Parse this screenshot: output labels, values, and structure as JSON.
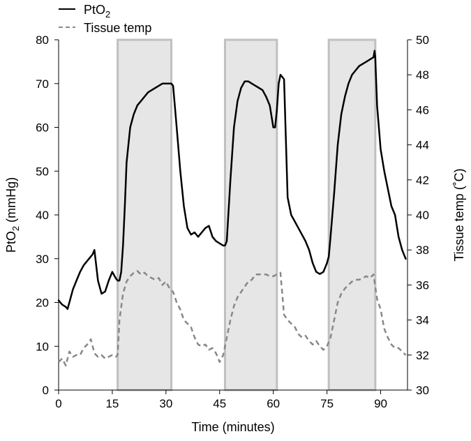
{
  "chart_data": {
    "type": "line",
    "title": "",
    "xlabel": "Time (minutes)",
    "ylabel_left": "PtO2 (mmHg)",
    "ylabel_right": "Tissue temp (˚C)",
    "xlim": [
      0,
      97.5
    ],
    "ylim_left": [
      0,
      80
    ],
    "ylim_right": [
      30,
      50
    ],
    "x_ticks": [
      "0",
      "15",
      "30",
      "45",
      "60",
      "75",
      "90"
    ],
    "y_left_ticks": [
      "0",
      "10",
      "20",
      "30",
      "40",
      "50",
      "60",
      "70",
      "80"
    ],
    "y_right_ticks": [
      "30",
      "32",
      "34",
      "36",
      "38",
      "40",
      "42",
      "44",
      "46",
      "48",
      "50"
    ],
    "grid": false,
    "legend_position": "top-left",
    "shaded_intervals": [
      [
        16.5,
        31.5
      ],
      [
        46.5,
        61
      ],
      [
        75.5,
        88.5
      ]
    ],
    "series": [
      {
        "name": "PtO2",
        "axis": "left",
        "style": "solid",
        "color": "#000000",
        "x": [
          0,
          1,
          2,
          2.5,
          3,
          4,
          5,
          6,
          7,
          8,
          9,
          9.5,
          10,
          11,
          12,
          13,
          14,
          15,
          16,
          16.5,
          17,
          17.5,
          18,
          18.5,
          19,
          20,
          21,
          22,
          23,
          24,
          25,
          26,
          27,
          28,
          29,
          30,
          31,
          31.5,
          32,
          33,
          34,
          35,
          36,
          37,
          38,
          39,
          40,
          41,
          42,
          43,
          44,
          45,
          46,
          46.5,
          47,
          48,
          49,
          50,
          51,
          52,
          53,
          54,
          55,
          56,
          57,
          58,
          59,
          60,
          60.5,
          61,
          61.5,
          62,
          63,
          64,
          65,
          66,
          67,
          68,
          69,
          70,
          71,
          72,
          73,
          74,
          75,
          75.5,
          76,
          77,
          78,
          79,
          80,
          81,
          82,
          83,
          84,
          85,
          86,
          87,
          88,
          88.3,
          88.5,
          89,
          90,
          91,
          92,
          93,
          94,
          95,
          96,
          97
        ],
        "y": [
          20.5,
          19.5,
          19,
          18.5,
          20,
          23,
          25,
          27,
          28.5,
          29.5,
          30.5,
          31,
          32,
          25,
          22,
          22.5,
          25,
          27,
          25.5,
          25,
          25,
          27,
          33,
          42,
          52,
          60,
          63,
          65,
          66,
          67,
          68,
          68.5,
          69,
          69.5,
          70,
          70,
          70,
          70,
          69.5,
          60,
          50,
          42,
          37,
          35.5,
          36,
          35,
          36,
          37,
          37.5,
          35,
          34,
          33.5,
          33,
          33,
          34,
          48,
          60,
          66,
          69,
          70.5,
          70.5,
          70,
          69.5,
          69,
          68.5,
          67,
          65,
          60,
          60,
          64,
          70,
          72,
          71,
          44,
          40,
          38.5,
          37,
          35.5,
          34,
          32,
          29,
          27,
          26.5,
          27,
          29,
          30.5,
          35,
          45,
          56,
          63,
          67,
          70,
          72,
          73,
          74,
          74.5,
          75,
          75.5,
          76,
          77.5,
          76,
          65,
          55,
          50,
          46,
          42,
          40,
          35,
          32,
          30
        ],
        "values": [
          20.5,
          19.5,
          19,
          18.5,
          20,
          23,
          25,
          27,
          28.5,
          29.5,
          30.5,
          31,
          32,
          25,
          22,
          22.5,
          25,
          27,
          25.5,
          25,
          25,
          27,
          33,
          42,
          52,
          60,
          63,
          65,
          66,
          67,
          68,
          68.5,
          69,
          69.5,
          70,
          70,
          70,
          70,
          69.5,
          60,
          50,
          42,
          37,
          35.5,
          36,
          35,
          36,
          37,
          37.5,
          35,
          34,
          33.5,
          33,
          33,
          34,
          48,
          60,
          66,
          69,
          70.5,
          70.5,
          70,
          69.5,
          69,
          68.5,
          67,
          65,
          60,
          60,
          64,
          70,
          72,
          71,
          44,
          40,
          38.5,
          37,
          35.5,
          34,
          32,
          29,
          27,
          26.5,
          27,
          29,
          30.5,
          35,
          45,
          56,
          63,
          67,
          70,
          72,
          73,
          74,
          74.5,
          75,
          75.5,
          76,
          77.5,
          76,
          65,
          55,
          50,
          46,
          42,
          40,
          35,
          32,
          30
        ]
      },
      {
        "name": "Tissue temp",
        "axis": "right",
        "style": "dashed",
        "color": "#888888",
        "x": [
          0,
          1,
          2,
          3,
          4,
          5,
          6,
          7,
          8,
          9,
          10,
          11,
          12,
          13,
          14,
          15,
          16,
          16.5,
          17,
          18,
          19,
          20,
          21,
          22,
          23,
          24,
          25,
          26,
          27,
          28,
          29,
          30,
          31,
          32,
          33,
          34,
          35,
          36,
          37,
          38,
          39,
          40,
          41,
          42,
          43,
          44,
          45,
          46,
          47,
          48,
          49,
          50,
          51,
          52,
          53,
          54,
          55,
          56,
          57,
          58,
          59,
          60,
          61,
          62,
          63,
          64,
          65,
          66,
          67,
          68,
          69,
          70,
          71,
          72,
          73,
          74,
          75,
          76,
          77,
          78,
          79,
          80,
          81,
          82,
          83,
          84,
          85,
          86,
          87,
          88,
          89,
          90,
          91,
          92,
          93,
          94,
          95,
          96,
          97
        ],
        "y": [
          31.6,
          31.8,
          31.4,
          32.2,
          31.9,
          32.0,
          32.0,
          32.4,
          32.6,
          32.9,
          32.1,
          31.9,
          32.0,
          31.8,
          31.9,
          32.0,
          31.9,
          32.0,
          34.0,
          35.5,
          36.2,
          36.5,
          36.7,
          36.8,
          36.6,
          36.7,
          36.5,
          36.4,
          36.3,
          36.4,
          36.0,
          36.2,
          35.8,
          35.6,
          35.0,
          34.6,
          34.0,
          33.8,
          33.6,
          33.0,
          32.6,
          32.5,
          32.6,
          32.3,
          32.4,
          32.1,
          31.6,
          32.0,
          33.0,
          34.0,
          34.8,
          35.3,
          35.6,
          35.9,
          36.2,
          36.3,
          36.6,
          36.6,
          36.6,
          36.6,
          36.5,
          36.5,
          36.6,
          36.7,
          34.3,
          34.0,
          33.8,
          33.6,
          33.2,
          33.0,
          33.1,
          32.8,
          32.6,
          32.8,
          32.5,
          32.3,
          32.5,
          33.0,
          34.0,
          35.0,
          35.5,
          35.8,
          36.0,
          36.2,
          36.3,
          36.3,
          36.4,
          36.5,
          36.4,
          36.6,
          35.2,
          34.6,
          33.5,
          33.0,
          32.6,
          32.4,
          32.4,
          32.2,
          32.0
        ],
        "values": [
          31.6,
          31.8,
          31.4,
          32.2,
          31.9,
          32.0,
          32.0,
          32.4,
          32.6,
          32.9,
          32.1,
          31.9,
          32.0,
          31.8,
          31.9,
          32.0,
          31.9,
          32.0,
          34.0,
          35.5,
          36.2,
          36.5,
          36.7,
          36.8,
          36.6,
          36.7,
          36.5,
          36.4,
          36.3,
          36.4,
          36.0,
          36.2,
          35.8,
          35.6,
          35.0,
          34.6,
          34.0,
          33.8,
          33.6,
          33.0,
          32.6,
          32.5,
          32.6,
          32.3,
          32.4,
          32.1,
          31.6,
          32.0,
          33.0,
          34.0,
          34.8,
          35.3,
          35.6,
          35.9,
          36.2,
          36.3,
          36.6,
          36.6,
          36.6,
          36.6,
          36.5,
          36.5,
          36.6,
          36.7,
          34.3,
          34.0,
          33.8,
          33.6,
          33.2,
          33.0,
          33.1,
          32.8,
          32.6,
          32.8,
          32.5,
          32.3,
          32.5,
          33.0,
          34.0,
          35.0,
          35.5,
          35.8,
          36.0,
          36.2,
          36.3,
          36.3,
          36.4,
          36.5,
          36.4,
          36.6,
          35.2,
          34.6,
          33.5,
          33.0,
          32.6,
          32.4,
          32.4,
          32.2,
          32.0
        ]
      }
    ]
  },
  "legend": {
    "items": [
      {
        "label": "PtO",
        "sub": "2"
      },
      {
        "label": "Tissue temp"
      }
    ]
  },
  "axis_titles": {
    "left_main": "PtO",
    "left_sub": "2",
    "left_units": " (mmHg)",
    "right": "Tissue temp  (˚C)",
    "bottom": "Time (minutes)"
  }
}
